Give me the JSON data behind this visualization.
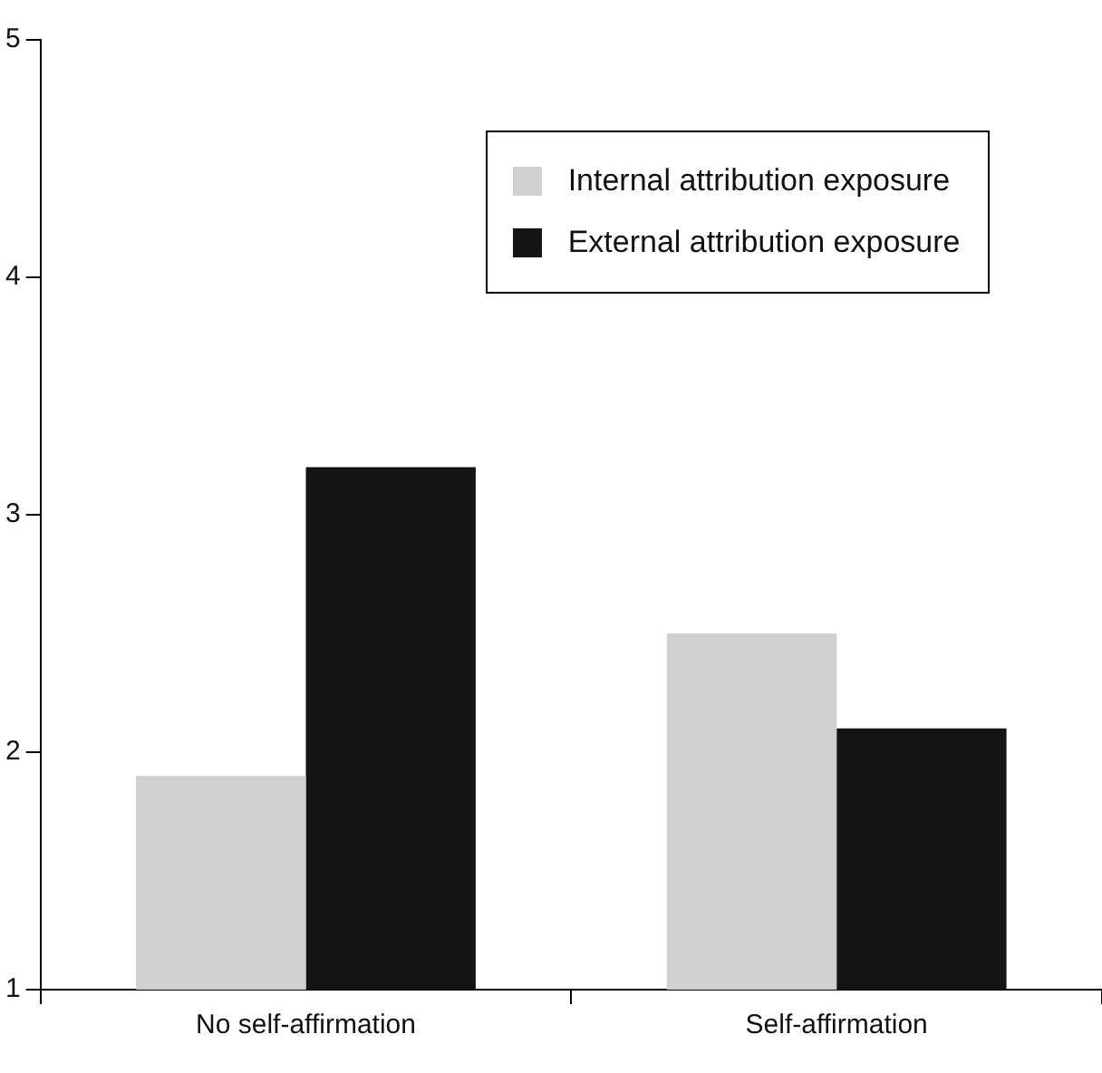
{
  "chart_data": {
    "type": "bar",
    "categories": [
      "No self-affirmation",
      "Self-affirmation"
    ],
    "series": [
      {
        "name": "Internal attribution exposure",
        "color": "#d0d0d0",
        "values": [
          1.9,
          2.5
        ]
      },
      {
        "name": "External attribution exposure",
        "color": "#141414",
        "values": [
          3.2,
          2.1
        ]
      }
    ],
    "ylim": [
      1,
      5
    ],
    "yticks": [
      1,
      2,
      3,
      4,
      5
    ],
    "grid": false,
    "legend": "top right"
  }
}
